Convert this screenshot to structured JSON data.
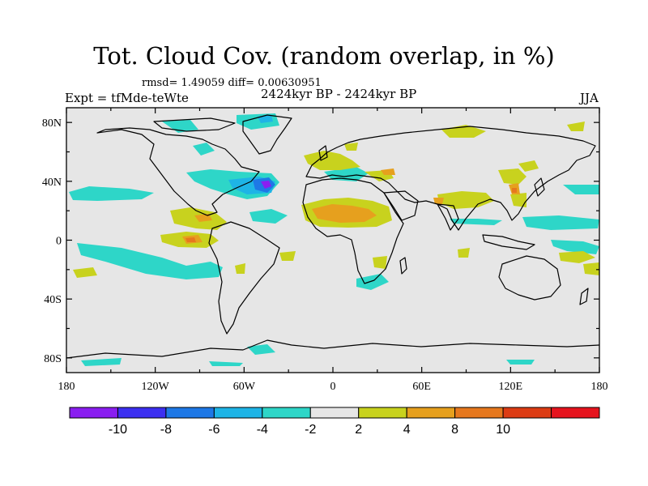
{
  "title": "Tot. Cloud Cov. (random overlap, in %)",
  "stats_line": "rmsd= 1.49059 diff= 0.00630951",
  "experiment": "Expt = tfMde-teWte",
  "period": "2424kyr BP - 2424kyr BP",
  "season": "JJA",
  "map_background": "#e6e6e6",
  "x_ticks": [
    "180",
    "120W",
    "60W",
    "0",
    "60E",
    "120E",
    "180"
  ],
  "y_ticks": [
    "80N",
    "40N",
    "0",
    "40S",
    "80S"
  ],
  "colorbar": {
    "colors": [
      "#8a1ef0",
      "#3c2ff0",
      "#1e78e6",
      "#1eb4e6",
      "#2ed6c8",
      "#e6e6e6",
      "#c8d21e",
      "#e6a01e",
      "#e6781e",
      "#dc3c14",
      "#e6141e"
    ],
    "labels": [
      "-10",
      "-8",
      "-6",
      "-4",
      "-2",
      "2",
      "4",
      "8",
      "10"
    ]
  }
}
